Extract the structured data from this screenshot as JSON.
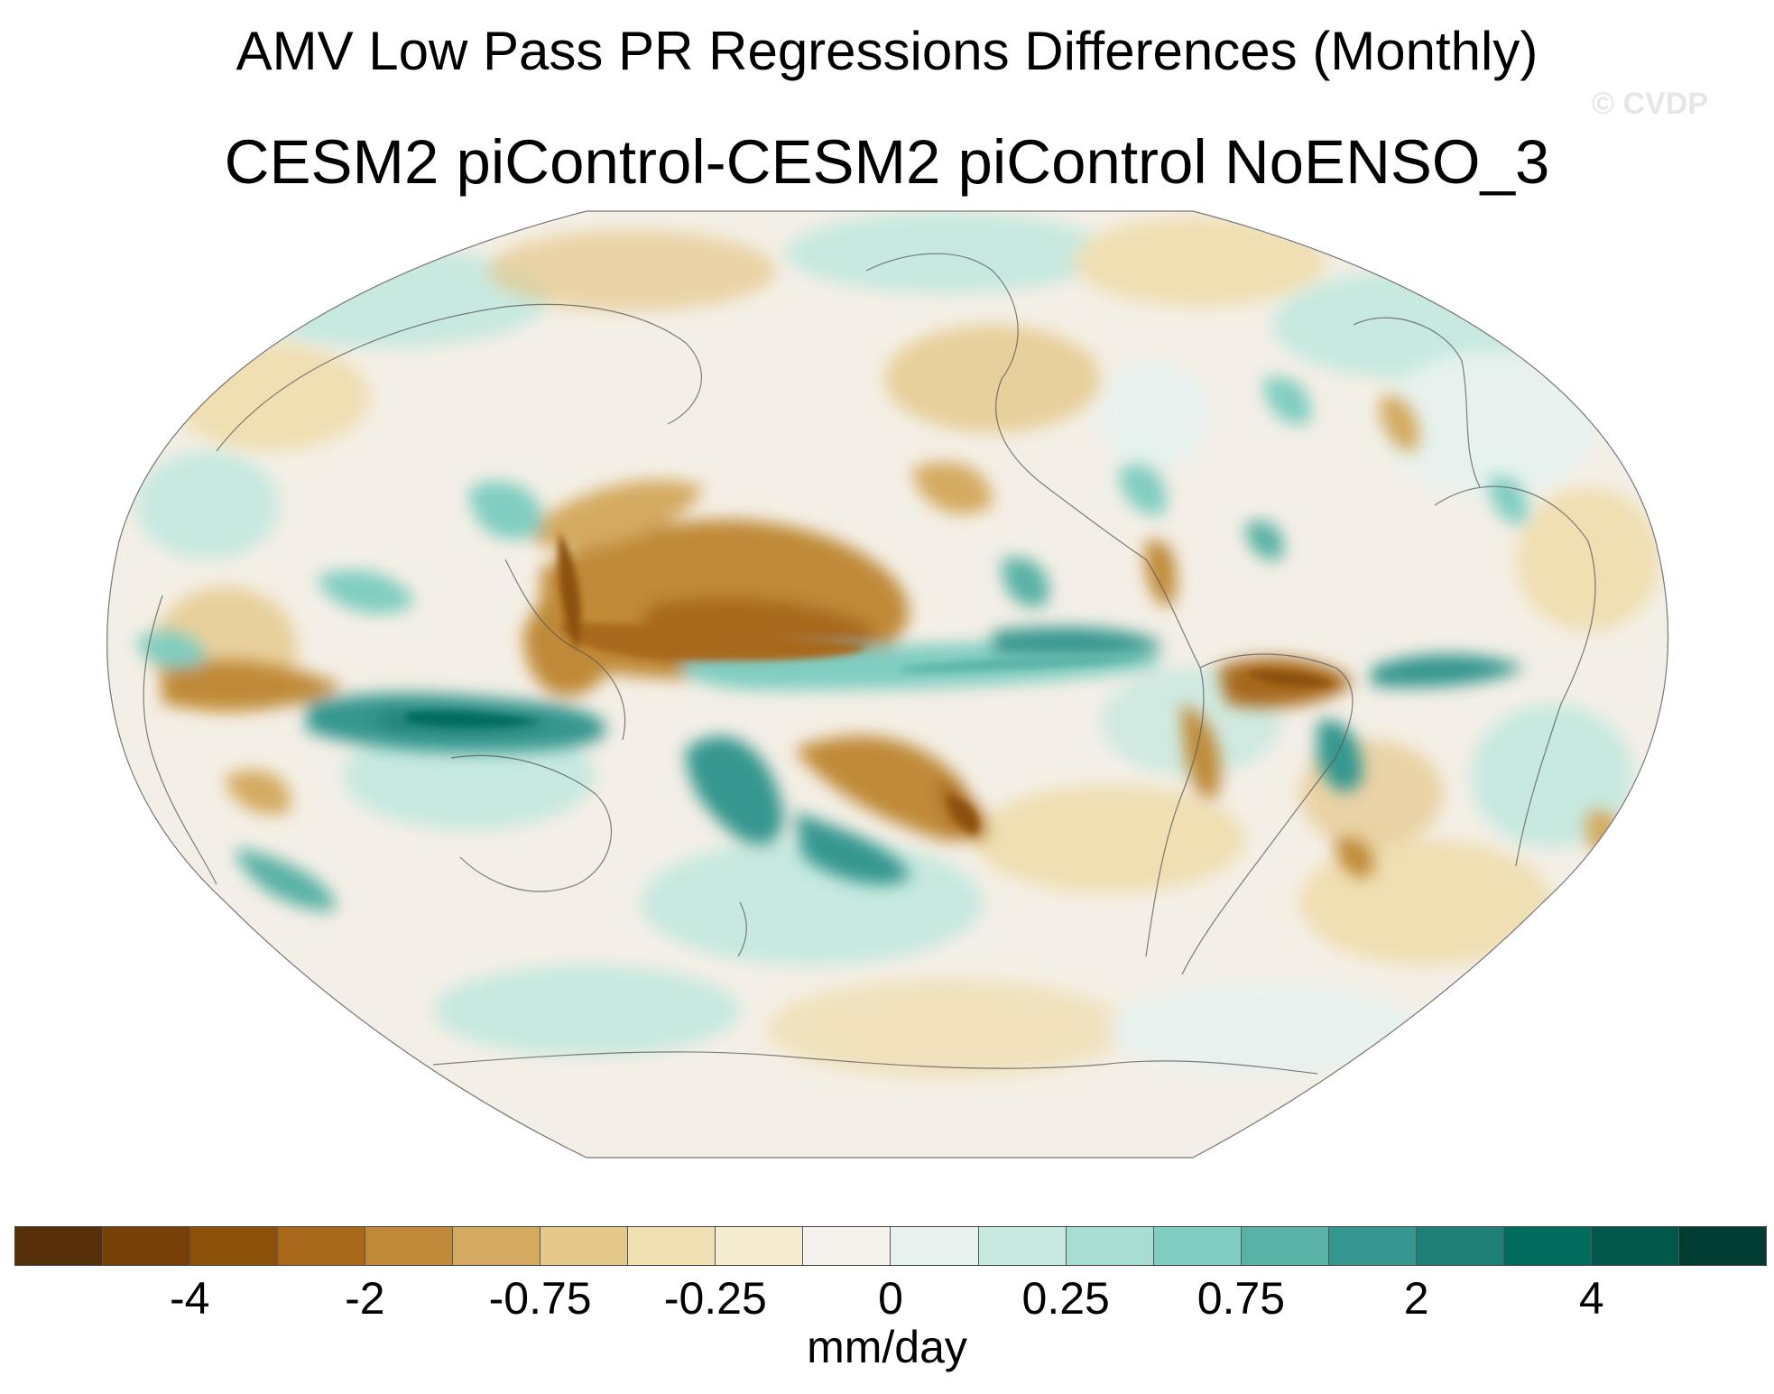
{
  "title": "AMV Low Pass PR Regressions Differences (Monthly)",
  "subtitle": "CESM2 piControl-CESM2 piControl NoENSO_3",
  "watermark": "© CVDP",
  "projection": "Robinson (Pacific-centered)",
  "colorbar": {
    "units": "mm/day",
    "colors": [
      "#553008",
      "#774008",
      "#8c5108",
      "#a8691a",
      "#c08a38",
      "#d4aa60",
      "#e5c88a",
      "#f0dfb3",
      "#f5eccf",
      "#f5f2ec",
      "#e7f2ee",
      "#c7e9e0",
      "#a9ddd2",
      "#80cdc1",
      "#5ab2a6",
      "#35978f",
      "#1f8078",
      "#016c5e",
      "#01574a",
      "#003c30"
    ],
    "tick_labels": [
      {
        "label": "-4",
        "boundary": 2
      },
      {
        "label": "-2",
        "boundary": 4
      },
      {
        "label": "-0.75",
        "boundary": 6
      },
      {
        "label": "-0.25",
        "boundary": 8
      },
      {
        "label": "0",
        "boundary": 10
      },
      {
        "label": "0.25",
        "boundary": 12
      },
      {
        "label": "0.75",
        "boundary": 14
      },
      {
        "label": "2",
        "boundary": 16
      },
      {
        "label": "4",
        "boundary": 18
      }
    ]
  }
}
